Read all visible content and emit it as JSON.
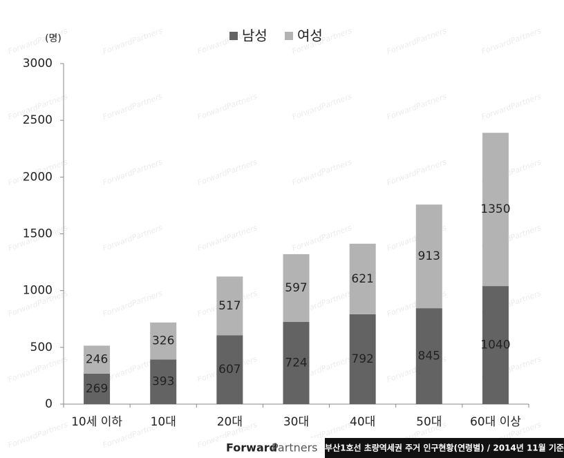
{
  "chart_data": {
    "type": "stacked_bar",
    "y_label": "(명)",
    "categories": [
      "10세 이하",
      "10대",
      "20대",
      "30대",
      "40대",
      "50대",
      "60대 이상"
    ],
    "series": [
      {
        "name": "남성",
        "color": "#636363",
        "values": [
          269,
          393,
          607,
          724,
          792,
          845,
          1040
        ]
      },
      {
        "name": "여성",
        "color": "#b3b3b3",
        "values": [
          246,
          326,
          517,
          597,
          621,
          913,
          1350
        ]
      }
    ],
    "ylim": [
      0,
      3000
    ],
    "yticks": [
      0,
      500,
      1000,
      1500,
      2000,
      2500,
      3000
    ],
    "grid": false,
    "watermark": "ForwardPartners"
  },
  "footer": {
    "logo_bold": "Forward",
    "logo_light": "Partners",
    "caption": "부산1호선 초량역세권 주거 인구현황(연령별) / 2014년 11월 기준"
  }
}
